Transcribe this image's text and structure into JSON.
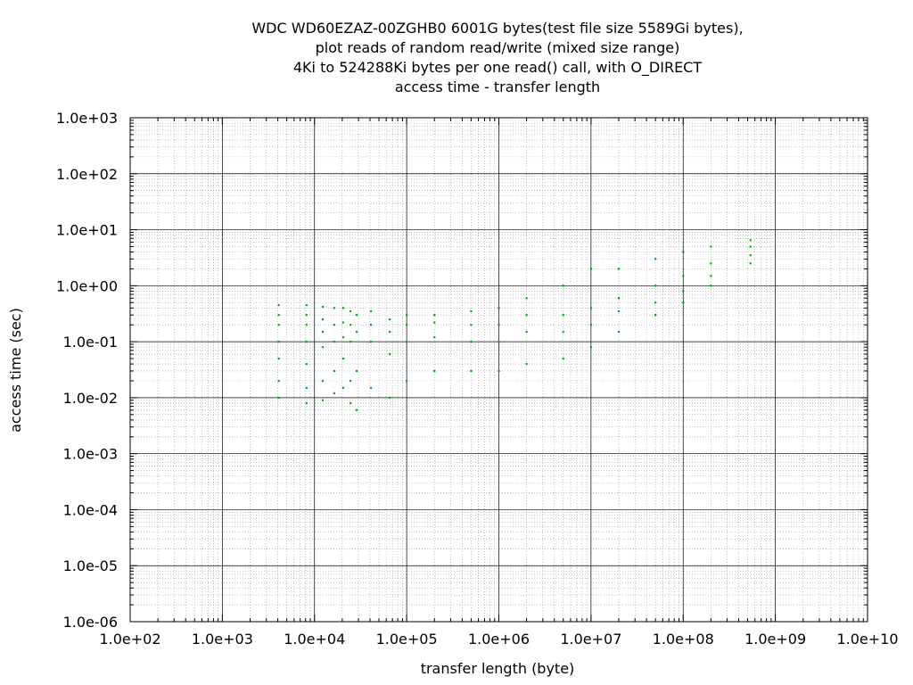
{
  "chart_data": {
    "type": "scatter",
    "title_lines": [
      "WDC WD60EZAZ-00ZGHB0 6001G bytes(test file size 5589Gi bytes),",
      "plot reads of random read/write (mixed size range)",
      "4Ki to 524288Ki bytes per one read() call, with O_DIRECT",
      "access time - transfer length"
    ],
    "xlabel": "transfer length (byte)",
    "ylabel": "access time (sec)",
    "x_scale": "log",
    "y_scale": "log",
    "xlim": [
      100,
      10000000000
    ],
    "ylim": [
      1e-06,
      1000
    ],
    "x_ticks": [
      {
        "value": 100,
        "label": "1.0e+02"
      },
      {
        "value": 1000,
        "label": "1.0e+03"
      },
      {
        "value": 10000,
        "label": "1.0e+04"
      },
      {
        "value": 100000,
        "label": "1.0e+05"
      },
      {
        "value": 1000000,
        "label": "1.0e+06"
      },
      {
        "value": 10000000,
        "label": "1.0e+07"
      },
      {
        "value": 100000000,
        "label": "1.0e+08"
      },
      {
        "value": 1000000000,
        "label": "1.0e+09"
      },
      {
        "value": 10000000000,
        "label": "1.0e+10"
      }
    ],
    "y_ticks": [
      {
        "value": 1000,
        "label": "1.0e+03"
      },
      {
        "value": 100,
        "label": "1.0e+02"
      },
      {
        "value": 10,
        "label": "1.0e+01"
      },
      {
        "value": 1,
        "label": "1.0e+00"
      },
      {
        "value": 0.1,
        "label": "1.0e-01"
      },
      {
        "value": 0.01,
        "label": "1.0e-02"
      },
      {
        "value": 0.001,
        "label": "1.0e-03"
      },
      {
        "value": 0.0001,
        "label": "1.0e-04"
      },
      {
        "value": 1e-05,
        "label": "1.0e-05"
      },
      {
        "value": 1e-06,
        "label": "1.0e-06"
      }
    ],
    "grid": true,
    "minor_grid": true,
    "point_color": "#00b000",
    "series": [
      {
        "points": [
          [
            4096,
            0.01
          ],
          [
            4096,
            0.02
          ],
          [
            4096,
            0.05
          ],
          [
            4096,
            0.1
          ],
          [
            4096,
            0.2
          ],
          [
            4096,
            0.3
          ],
          [
            4096,
            0.45
          ],
          [
            8192,
            0.008
          ],
          [
            8192,
            0.015
          ],
          [
            8192,
            0.04
          ],
          [
            8192,
            0.1
          ],
          [
            8192,
            0.2
          ],
          [
            8192,
            0.3
          ],
          [
            8192,
            0.45
          ],
          [
            12288,
            0.009
          ],
          [
            12288,
            0.02
          ],
          [
            12288,
            0.08
          ],
          [
            12288,
            0.15
          ],
          [
            12288,
            0.25
          ],
          [
            12288,
            0.42
          ],
          [
            16384,
            0.012
          ],
          [
            16384,
            0.03
          ],
          [
            16384,
            0.1
          ],
          [
            16384,
            0.2
          ],
          [
            16384,
            0.4
          ],
          [
            20480,
            0.015
          ],
          [
            20480,
            0.05
          ],
          [
            20480,
            0.12
          ],
          [
            20480,
            0.22
          ],
          [
            20480,
            0.4
          ],
          [
            24576,
            0.008
          ],
          [
            24576,
            0.02
          ],
          [
            24576,
            0.1
          ],
          [
            24576,
            0.2
          ],
          [
            24576,
            0.35
          ],
          [
            28672,
            0.006
          ],
          [
            28672,
            0.03
          ],
          [
            28672,
            0.15
          ],
          [
            28672,
            0.3
          ],
          [
            40960,
            0.015
          ],
          [
            40960,
            0.1
          ],
          [
            40960,
            0.2
          ],
          [
            40960,
            0.35
          ],
          [
            65536,
            0.01
          ],
          [
            65536,
            0.06
          ],
          [
            65536,
            0.15
          ],
          [
            65536,
            0.25
          ],
          [
            100000,
            0.02
          ],
          [
            100000,
            0.1
          ],
          [
            100000,
            0.2
          ],
          [
            100000,
            0.3
          ],
          [
            200000,
            0.03
          ],
          [
            200000,
            0.12
          ],
          [
            200000,
            0.22
          ],
          [
            200000,
            0.3
          ],
          [
            500000,
            0.03
          ],
          [
            500000,
            0.1
          ],
          [
            500000,
            0.2
          ],
          [
            500000,
            0.35
          ],
          [
            1000000,
            0.03
          ],
          [
            1000000,
            0.1
          ],
          [
            1000000,
            0.2
          ],
          [
            1000000,
            0.4
          ],
          [
            2000000,
            0.04
          ],
          [
            2000000,
            0.15
          ],
          [
            2000000,
            0.3
          ],
          [
            2000000,
            0.6
          ],
          [
            5000000,
            0.05
          ],
          [
            5000000,
            0.15
          ],
          [
            5000000,
            0.3
          ],
          [
            5000000,
            1.0
          ],
          [
            10000000,
            0.08
          ],
          [
            10000000,
            0.2
          ],
          [
            10000000,
            0.4
          ],
          [
            10000000,
            2.0
          ],
          [
            20000000,
            0.15
          ],
          [
            20000000,
            0.35
          ],
          [
            20000000,
            0.6
          ],
          [
            20000000,
            2.0
          ],
          [
            50000000,
            0.3
          ],
          [
            50000000,
            0.5
          ],
          [
            50000000,
            1.0
          ],
          [
            50000000,
            3.0
          ],
          [
            100000000,
            0.5
          ],
          [
            100000000,
            0.8
          ],
          [
            100000000,
            1.5
          ],
          [
            100000000,
            4.0
          ],
          [
            200000000,
            1.0
          ],
          [
            200000000,
            1.5
          ],
          [
            200000000,
            2.5
          ],
          [
            200000000,
            5.0
          ],
          [
            536870912,
            2.5
          ],
          [
            536870912,
            3.5
          ],
          [
            536870912,
            5.0
          ],
          [
            536870912,
            6.5
          ]
        ]
      }
    ]
  }
}
